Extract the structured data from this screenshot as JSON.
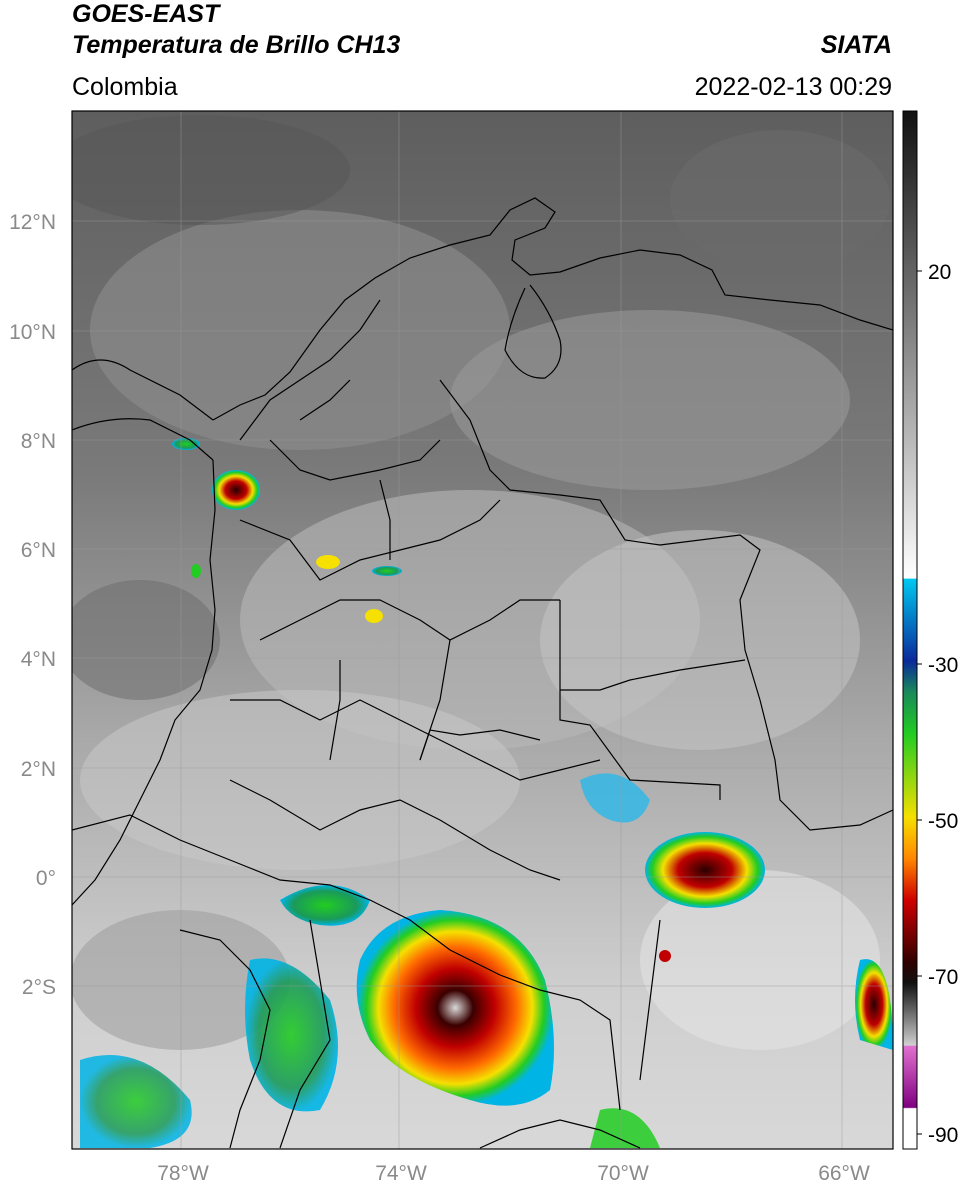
{
  "header": {
    "line1": "GOES-EAST",
    "line2": "Temperatura de Brillo CH13",
    "region": "Colombia",
    "brand": "SIATA",
    "datetime": "2022-02-13 00:29"
  },
  "map": {
    "lat_labels": [
      "12°N",
      "10°N",
      "8°N",
      "6°N",
      "4°N",
      "2°N",
      "0°",
      "2°S"
    ],
    "lon_labels": [
      "78°W",
      "74°W",
      "70°W",
      "66°W"
    ]
  },
  "colorbar": {
    "labels": [
      "20",
      "-30",
      "-50",
      "-70",
      "-90"
    ],
    "colors": {
      "warm": "#ffffff",
      "cold_gray": "#111111",
      "cyan": "#00b4e6",
      "blue": "#0a2a9a",
      "green": "#22cc22",
      "yellow": "#f5e000",
      "orange": "#ff8800",
      "red": "#d00000",
      "darkred": "#500000",
      "pink": "#e070d0",
      "purple": "#800080"
    }
  }
}
